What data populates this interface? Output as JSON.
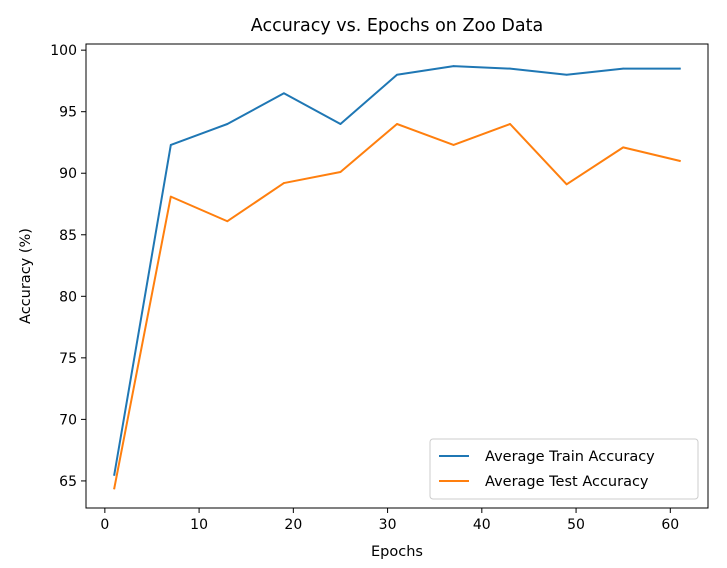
{
  "chart_data": {
    "type": "line",
    "title": "Accuracy vs. Epochs on Zoo Data",
    "xlabel": "Epochs",
    "ylabel": "Accuracy (%)",
    "x": [
      1,
      7,
      13,
      19,
      25,
      31,
      37,
      43,
      49,
      55,
      61
    ],
    "xlim": [
      -2.0,
      64.0
    ],
    "ylim": [
      62.8,
      100.5
    ],
    "xticks": [
      0,
      10,
      20,
      30,
      40,
      50,
      60
    ],
    "yticks": [
      65,
      70,
      75,
      80,
      85,
      90,
      95,
      100
    ],
    "xtick_labels": [
      "0",
      "10",
      "20",
      "30",
      "40",
      "50",
      "60"
    ],
    "ytick_labels": [
      "65",
      "70",
      "75",
      "80",
      "85",
      "90",
      "95",
      "100"
    ],
    "grid": false,
    "legend_position": "lower right",
    "series": [
      {
        "name": "Average Train Accuracy",
        "color": "#1f77b4",
        "values": [
          65.5,
          92.3,
          94.0,
          96.5,
          94.0,
          98.0,
          98.7,
          98.5,
          98.0,
          98.5,
          98.5
        ]
      },
      {
        "name": "Average Test Accuracy",
        "color": "#ff7f0e",
        "values": [
          64.4,
          88.1,
          86.1,
          89.2,
          90.1,
          94.0,
          92.3,
          94.0,
          89.1,
          92.1,
          91.0
        ]
      }
    ]
  }
}
